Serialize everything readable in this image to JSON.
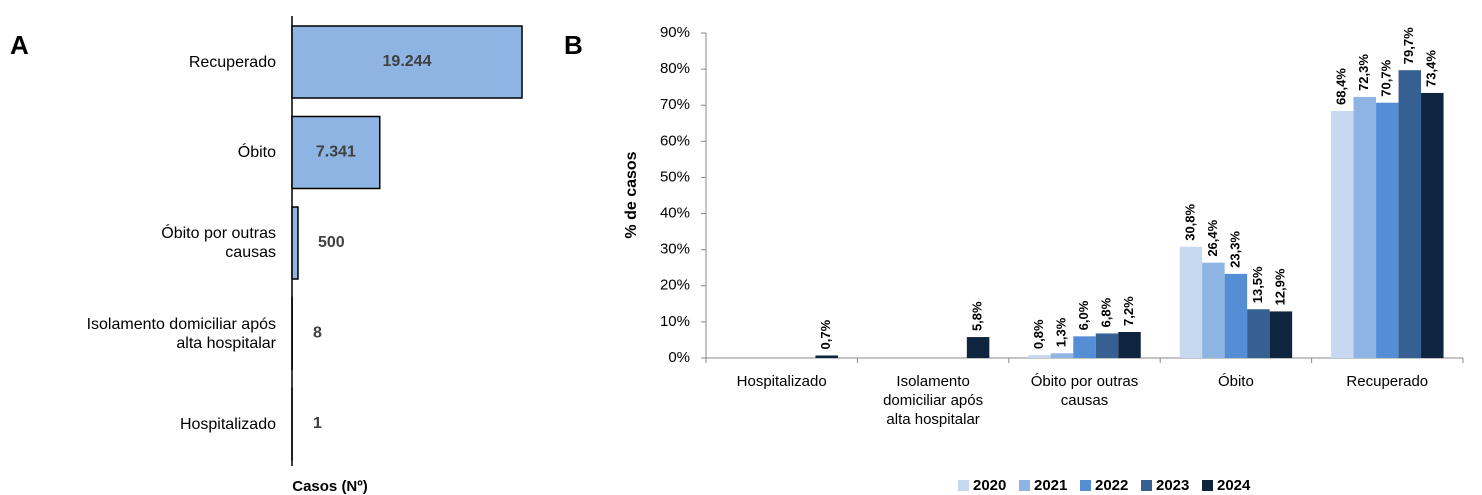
{
  "chart_data": [
    {
      "type": "barh",
      "panel_label": "A",
      "xlabel": "Casos (Nº)",
      "color": "#8db4e3",
      "categories": [
        "Recuperado",
        "Óbito",
        "Óbito por outras causas",
        "Isolamento domiciliar após alta hospitalar",
        "Hospitalizado"
      ],
      "values": [
        19244,
        7341,
        500,
        8,
        1
      ],
      "value_labels": [
        "19.244",
        "7.341",
        "500",
        "8",
        "1"
      ]
    },
    {
      "type": "bar",
      "panel_label": "B",
      "ylabel": "% de casos",
      "categories": [
        "Hospitalizado",
        "Isolamento domiciliar após alta hospitalar",
        "Óbito por outras causas",
        "Óbito",
        "Recuperado"
      ],
      "series": [
        {
          "name": "2020",
          "color": "#c6d9f1",
          "values": [
            null,
            null,
            0.8,
            30.8,
            68.4
          ],
          "value_labels": [
            null,
            null,
            "0,8%",
            "30,8%",
            "68,4%"
          ]
        },
        {
          "name": "2021",
          "color": "#8db4e3",
          "values": [
            null,
            null,
            1.3,
            26.4,
            72.3
          ],
          "value_labels": [
            null,
            null,
            "1,3%",
            "26,4%",
            "72,3%"
          ]
        },
        {
          "name": "2022",
          "color": "#558ed5",
          "values": [
            null,
            null,
            6.0,
            23.3,
            70.7
          ],
          "value_labels": [
            null,
            null,
            "6,0%",
            "23,3%",
            "70,7%"
          ]
        },
        {
          "name": "2023",
          "color": "#376092",
          "values": [
            null,
            null,
            6.8,
            13.5,
            79.7
          ],
          "value_labels": [
            null,
            null,
            "6,8%",
            "13,5%",
            "79,7%"
          ]
        },
        {
          "name": "2024",
          "color": "#0f243e",
          "values": [
            0.7,
            5.8,
            7.2,
            12.9,
            73.4
          ],
          "value_labels": [
            "0,7%",
            "5,8%",
            "7,2%",
            "12,9%",
            "73,4%"
          ]
        }
      ],
      "ylim": [
        0,
        90
      ],
      "yticks": [
        {
          "value": 0,
          "label": "0%"
        },
        {
          "value": 10,
          "label": "10%"
        },
        {
          "value": 20,
          "label": "20%"
        },
        {
          "value": 30,
          "label": "30%"
        },
        {
          "value": 40,
          "label": "40%"
        },
        {
          "value": 50,
          "label": "50%"
        },
        {
          "value": 60,
          "label": "60%"
        },
        {
          "value": 70,
          "label": "70%"
        },
        {
          "value": 80,
          "label": "80%"
        },
        {
          "value": 90,
          "label": "90%"
        }
      ],
      "legend": "bottom"
    }
  ]
}
